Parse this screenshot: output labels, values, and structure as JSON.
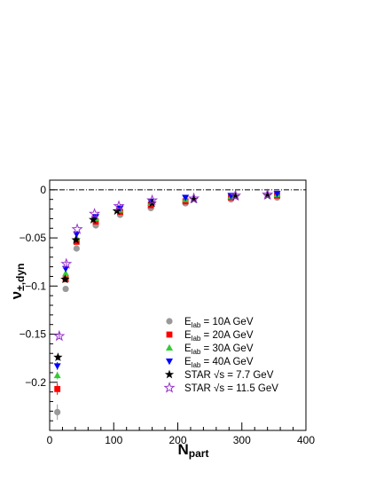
{
  "chart_data": {
    "type": "scatter",
    "title": "",
    "xlabel": "N",
    "xlabel_sub": "part",
    "ylabel": "ν",
    "ylabel_sub": "±,dyn",
    "xlim": [
      0,
      400
    ],
    "ylim": [
      -0.25,
      0.01
    ],
    "x_ticks": [
      0,
      100,
      200,
      300,
      400
    ],
    "x_tick_labels": [
      "0",
      "100",
      "200",
      "300",
      "400"
    ],
    "y_ticks": [
      0,
      -0.05,
      -0.1,
      -0.15,
      -0.2
    ],
    "y_tick_labels": [
      "0",
      "−0.05",
      "−0.1",
      "−0.15",
      "−0.2"
    ],
    "grid": false,
    "legend_position": "bottom-right",
    "reference_line": {
      "y": 0,
      "style": "dash-dot"
    },
    "series": [
      {
        "name_main": "E",
        "name_sub": "lab",
        "name_rest": " = 10A GeV",
        "marker": "circle",
        "color": "#999999",
        "points": [
          [
            12,
            -0.231
          ],
          [
            25,
            -0.103
          ],
          [
            42,
            -0.061
          ],
          [
            72,
            -0.037
          ],
          [
            110,
            -0.026
          ],
          [
            158,
            -0.019
          ],
          [
            212,
            -0.014
          ],
          [
            283,
            -0.01
          ],
          [
            355,
            -0.008
          ]
        ],
        "errors": [
          0.008,
          0.002,
          0.002,
          0.001,
          0.001,
          0.001,
          0.001,
          0.001,
          0.001
        ]
      },
      {
        "name_main": "E",
        "name_sub": "lab",
        "name_rest": " = 20A GeV",
        "marker": "square",
        "color": "#ff0000",
        "points": [
          [
            12,
            -0.207
          ],
          [
            25,
            -0.093
          ],
          [
            42,
            -0.054
          ],
          [
            72,
            -0.033
          ],
          [
            110,
            -0.023
          ],
          [
            158,
            -0.016
          ],
          [
            212,
            -0.012
          ],
          [
            283,
            -0.008
          ],
          [
            355,
            -0.006
          ]
        ],
        "errors": [
          0.006,
          0.002,
          0.002,
          0.001,
          0.001,
          0.001,
          0.001,
          0.001,
          0.001
        ]
      },
      {
        "name_main": "E",
        "name_sub": "lab",
        "name_rest": " = 30A GeV",
        "marker": "triangle-up",
        "color": "#33cc33",
        "points": [
          [
            12,
            -0.193
          ],
          [
            25,
            -0.087
          ],
          [
            42,
            -0.05
          ],
          [
            72,
            -0.03
          ],
          [
            110,
            -0.021
          ],
          [
            158,
            -0.014
          ],
          [
            212,
            -0.01
          ],
          [
            283,
            -0.007
          ],
          [
            355,
            -0.005
          ]
        ],
        "errors": [
          0.004,
          0.002,
          0.001,
          0.001,
          0.001,
          0.001,
          0.001,
          0.001,
          0.001
        ]
      },
      {
        "name_main": "E",
        "name_sub": "lab",
        "name_rest": " = 40A GeV",
        "marker": "triangle-down",
        "color": "#0000ff",
        "points": [
          [
            12,
            -0.183
          ],
          [
            25,
            -0.082
          ],
          [
            42,
            -0.046
          ],
          [
            72,
            -0.028
          ],
          [
            110,
            -0.019
          ],
          [
            158,
            -0.012
          ],
          [
            212,
            -0.008
          ],
          [
            283,
            -0.006
          ],
          [
            355,
            -0.004
          ]
        ],
        "errors": [
          0.004,
          0.002,
          0.001,
          0.001,
          0.001,
          0.001,
          0.001,
          0.001,
          0.001
        ]
      },
      {
        "name_main": "STAR  √s = 7.7 GeV",
        "name_sub": "",
        "name_rest": "",
        "marker": "star",
        "color": "#000000",
        "points": [
          [
            13,
            -0.174
          ],
          [
            24,
            -0.093
          ],
          [
            41,
            -0.052
          ],
          [
            68,
            -0.031
          ],
          [
            105,
            -0.022
          ],
          [
            160,
            -0.014
          ],
          [
            225,
            -0.01
          ],
          [
            290,
            -0.007
          ],
          [
            340,
            -0.006
          ]
        ],
        "errors": [
          0.003,
          0.002,
          0.002,
          0.001,
          0.001,
          0.001,
          0.001,
          0.001,
          0.001
        ]
      },
      {
        "name_main": "STAR  √s = 11.5 GeV",
        "name_sub": "",
        "name_rest": "",
        "marker": "star-open",
        "color": "#9933cc",
        "points": [
          [
            15,
            -0.152
          ],
          [
            26,
            -0.077
          ],
          [
            43,
            -0.041
          ],
          [
            70,
            -0.025
          ],
          [
            108,
            -0.017
          ],
          [
            160,
            -0.011
          ],
          [
            225,
            -0.009
          ],
          [
            290,
            -0.006
          ],
          [
            340,
            -0.005
          ]
        ],
        "errors": [
          0.003,
          0.002,
          0.001,
          0.001,
          0.001,
          0.001,
          0.001,
          0.001,
          0.001
        ]
      }
    ]
  }
}
